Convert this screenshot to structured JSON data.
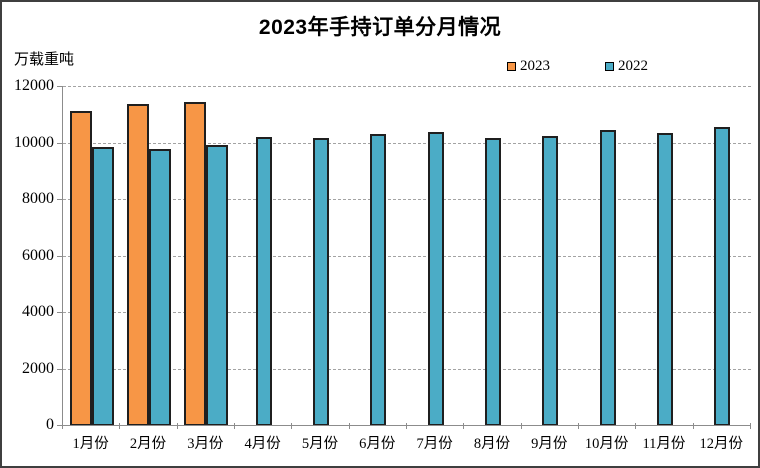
{
  "chart": {
    "title": "2023年手持订单分月情况",
    "y_unit": "万载重吨",
    "legend": [
      {
        "label": "2023",
        "color": "#F79646"
      },
      {
        "label": "2022",
        "color": "#4BACC6"
      }
    ]
  },
  "chart_data": {
    "type": "bar",
    "title": "2023年手持订单分月情况",
    "xlabel": "",
    "ylabel": "万载重吨",
    "categories": [
      "1月份",
      "2月份",
      "3月份",
      "4月份",
      "5月份",
      "6月份",
      "7月份",
      "8月份",
      "9月份",
      "10月份",
      "11月份",
      "12月份"
    ],
    "series": [
      {
        "name": "2023",
        "color": "#F79646",
        "values": [
          11100,
          11370,
          11450,
          null,
          null,
          null,
          null,
          null,
          null,
          null,
          null,
          null
        ]
      },
      {
        "name": "2022",
        "color": "#4BACC6",
        "values": [
          9830,
          9760,
          9900,
          10210,
          10170,
          10300,
          10360,
          10170,
          10240,
          10440,
          10350,
          10540
        ]
      }
    ],
    "ylim": [
      0,
      12000
    ],
    "yticks": [
      0,
      2000,
      4000,
      6000,
      8000,
      10000,
      12000
    ],
    "grid": "horizontal-dashed",
    "legend_position": "top-right",
    "bar_border_color": "#1f1f1f",
    "axis_color": "#8c8c8c"
  }
}
